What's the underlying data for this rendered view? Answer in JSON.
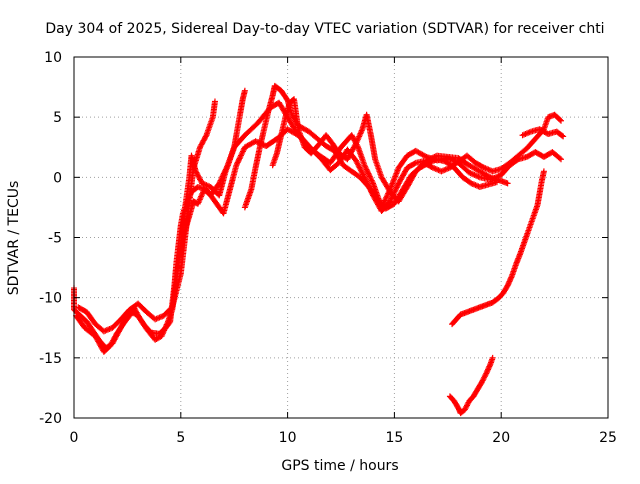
{
  "chart_data": {
    "type": "scatter",
    "title": "Day 304 of 2025, Sidereal Day-to-day VTEC variation (SDTVAR) for receiver chti",
    "xlabel": "GPS time / hours",
    "ylabel": "SDTVAR / TECUs",
    "xlim": [
      0,
      25
    ],
    "ylim": [
      -20,
      10
    ],
    "xticks": [
      0,
      5,
      10,
      15,
      20,
      25
    ],
    "yticks": [
      -20,
      -15,
      -10,
      -5,
      0,
      5,
      10
    ],
    "grid": true,
    "marker": "+",
    "color": "#ff0000",
    "series": [
      {
        "name": "track-1",
        "points": [
          [
            0.0,
            -9.2
          ],
          [
            0.0,
            -11.0
          ],
          [
            0.3,
            -11.5
          ],
          [
            0.6,
            -12.0
          ],
          [
            0.9,
            -12.8
          ],
          [
            1.2,
            -13.6
          ],
          [
            1.5,
            -14.2
          ],
          [
            1.8,
            -13.8
          ],
          [
            2.1,
            -12.8
          ],
          [
            2.4,
            -11.8
          ],
          [
            2.7,
            -11.2
          ],
          [
            3.0,
            -11.5
          ],
          [
            3.3,
            -12.3
          ],
          [
            3.6,
            -12.9
          ],
          [
            4.0,
            -13.0
          ],
          [
            4.3,
            -12.5
          ],
          [
            4.5,
            -12.0
          ],
          [
            4.6,
            -10.5
          ],
          [
            4.7,
            -9.0
          ],
          [
            4.8,
            -7.0
          ],
          [
            4.9,
            -5.5
          ],
          [
            5.0,
            -4.0
          ],
          [
            5.1,
            -3.0
          ],
          [
            5.3,
            -2.0
          ],
          [
            5.5,
            -1.2
          ],
          [
            5.8,
            -0.8
          ],
          [
            6.2,
            -1.0
          ],
          [
            6.6,
            -2.0
          ],
          [
            7.0,
            -3.0
          ],
          [
            7.3,
            -1.0
          ],
          [
            7.6,
            1.0
          ],
          [
            8.0,
            2.5
          ],
          [
            8.5,
            3.0
          ],
          [
            9.0,
            2.6
          ],
          [
            9.5,
            3.2
          ],
          [
            10.0,
            4.0
          ],
          [
            10.5,
            3.5
          ],
          [
            11.0,
            2.5
          ],
          [
            11.5,
            1.8
          ],
          [
            12.0,
            1.2
          ],
          [
            12.5,
            2.5
          ],
          [
            13.0,
            3.5
          ],
          [
            13.3,
            2.5
          ],
          [
            13.6,
            1.0
          ],
          [
            14.0,
            -0.5
          ],
          [
            14.4,
            -2.5
          ],
          [
            14.8,
            -1.0
          ],
          [
            15.2,
            0.8
          ],
          [
            15.6,
            1.8
          ],
          [
            16.0,
            2.2
          ],
          [
            16.5,
            1.7
          ],
          [
            17.0,
            1.4
          ],
          [
            17.5,
            1.6
          ],
          [
            18.0,
            1.2
          ],
          [
            18.5,
            0.4
          ],
          [
            19.0,
            0.0
          ],
          [
            19.5,
            -0.2
          ],
          [
            20.0,
            0.2
          ],
          [
            20.4,
            1.0
          ],
          [
            20.8,
            1.5
          ],
          [
            21.2,
            1.7
          ],
          [
            21.6,
            2.1
          ],
          [
            22.0,
            1.7
          ],
          [
            22.4,
            2.1
          ],
          [
            22.8,
            1.5
          ]
        ]
      },
      {
        "name": "track-2",
        "points": [
          [
            0.1,
            -11.5
          ],
          [
            0.5,
            -12.5
          ],
          [
            1.0,
            -13.2
          ],
          [
            1.4,
            -14.5
          ],
          [
            1.7,
            -14.0
          ],
          [
            2.0,
            -13.0
          ],
          [
            2.3,
            -12.2
          ],
          [
            2.6,
            -11.5
          ],
          [
            2.8,
            -10.8
          ],
          [
            3.1,
            -11.8
          ],
          [
            3.4,
            -12.6
          ],
          [
            3.8,
            -13.5
          ],
          [
            4.1,
            -13.2
          ],
          [
            4.4,
            -12.0
          ],
          [
            4.6,
            -11.0
          ],
          [
            4.8,
            -8.5
          ],
          [
            5.0,
            -5.5
          ],
          [
            5.2,
            -2.5
          ],
          [
            5.4,
            0.0
          ],
          [
            5.5,
            1.8
          ],
          [
            5.7,
            0.5
          ],
          [
            6.0,
            -0.5
          ],
          [
            6.4,
            -0.8
          ],
          [
            6.8,
            -1.5
          ],
          [
            7.1,
            0.5
          ],
          [
            7.5,
            2.5
          ],
          [
            8.0,
            3.5
          ],
          [
            8.6,
            4.5
          ],
          [
            9.2,
            5.8
          ],
          [
            9.6,
            6.2
          ],
          [
            10.0,
            5.0
          ],
          [
            10.4,
            3.8
          ],
          [
            10.8,
            3.0
          ],
          [
            11.2,
            2.2
          ],
          [
            11.6,
            1.5
          ],
          [
            12.0,
            0.6
          ],
          [
            12.4,
            1.2
          ],
          [
            12.8,
            2.3
          ],
          [
            13.2,
            1.4
          ],
          [
            13.6,
            0.0
          ],
          [
            14.0,
            -1.5
          ],
          [
            14.4,
            -2.8
          ],
          [
            14.8,
            -2.0
          ],
          [
            15.2,
            -0.5
          ],
          [
            15.6,
            0.8
          ],
          [
            16.0,
            1.2
          ],
          [
            16.5,
            1.4
          ],
          [
            17.0,
            1.8
          ],
          [
            17.5,
            1.7
          ],
          [
            18.0,
            1.6
          ],
          [
            18.5,
            1.0
          ],
          [
            19.0,
            0.5
          ],
          [
            19.5,
            0.0
          ],
          [
            20.0,
            -0.3
          ],
          [
            20.3,
            -0.5
          ]
        ]
      },
      {
        "name": "track-3",
        "points": [
          [
            0.2,
            -10.8
          ],
          [
            0.6,
            -11.2
          ],
          [
            1.0,
            -12.2
          ],
          [
            1.4,
            -12.8
          ],
          [
            1.8,
            -12.5
          ],
          [
            2.2,
            -11.8
          ],
          [
            2.6,
            -11.0
          ],
          [
            3.0,
            -10.5
          ],
          [
            3.4,
            -11.2
          ],
          [
            3.8,
            -11.8
          ],
          [
            4.2,
            -11.5
          ],
          [
            4.6,
            -10.8
          ],
          [
            5.0,
            -8.0
          ],
          [
            5.3,
            -3.5
          ],
          [
            5.6,
            0.8
          ],
          [
            5.9,
            2.5
          ],
          [
            6.2,
            3.5
          ],
          [
            6.5,
            5.0
          ],
          [
            6.6,
            6.3
          ]
        ]
      },
      {
        "name": "track-4",
        "points": [
          [
            4.9,
            -6.5
          ],
          [
            5.1,
            -5.0
          ],
          [
            5.4,
            -3.2
          ],
          [
            5.6,
            -2.0
          ],
          [
            5.8,
            -2.2
          ],
          [
            6.1,
            -1.0
          ],
          [
            6.4,
            -1.5
          ],
          [
            6.8,
            -0.5
          ],
          [
            7.2,
            1.0
          ],
          [
            7.5,
            2.5
          ],
          [
            7.7,
            4.5
          ],
          [
            7.9,
            6.5
          ],
          [
            8.0,
            7.2
          ]
        ]
      },
      {
        "name": "track-5",
        "points": [
          [
            8.0,
            -2.5
          ],
          [
            8.3,
            -1.0
          ],
          [
            8.5,
            0.8
          ],
          [
            8.7,
            2.5
          ],
          [
            8.9,
            4.0
          ],
          [
            9.1,
            5.5
          ],
          [
            9.3,
            6.8
          ],
          [
            9.4,
            7.6
          ],
          [
            9.7,
            7.2
          ],
          [
            10.0,
            6.4
          ],
          [
            10.2,
            5.2
          ],
          [
            10.5,
            4.3
          ],
          [
            11.0,
            3.8
          ],
          [
            11.4,
            3.2
          ],
          [
            11.8,
            2.6
          ],
          [
            12.2,
            2.2
          ],
          [
            12.6,
            1.0
          ],
          [
            13.0,
            0.5
          ],
          [
            13.4,
            0.0
          ],
          [
            13.8,
            -0.8
          ],
          [
            14.2,
            -1.8
          ],
          [
            14.6,
            -2.6
          ],
          [
            15.0,
            -2.2
          ],
          [
            15.4,
            -1.0
          ],
          [
            15.8,
            0.2
          ],
          [
            16.2,
            0.8
          ],
          [
            16.6,
            1.2
          ],
          [
            17.0,
            1.5
          ],
          [
            17.4,
            1.3
          ],
          [
            17.8,
            0.8
          ],
          [
            18.2,
            0.0
          ],
          [
            18.6,
            -0.5
          ],
          [
            19.0,
            -0.8
          ],
          [
            19.4,
            -0.6
          ],
          [
            19.8,
            -0.4
          ]
        ]
      },
      {
        "name": "track-6",
        "points": [
          [
            9.3,
            1.0
          ],
          [
            9.5,
            2.0
          ],
          [
            9.7,
            3.5
          ],
          [
            9.9,
            5.0
          ],
          [
            10.1,
            6.2
          ],
          [
            10.3,
            6.5
          ],
          [
            10.5,
            4.0
          ],
          [
            10.8,
            2.5
          ],
          [
            11.1,
            2.0
          ],
          [
            11.5,
            2.8
          ],
          [
            11.8,
            3.5
          ],
          [
            12.1,
            2.8
          ],
          [
            12.4,
            2.0
          ],
          [
            12.8,
            1.5
          ],
          [
            13.2,
            2.8
          ],
          [
            13.5,
            4.0
          ],
          [
            13.7,
            5.2
          ],
          [
            13.9,
            3.5
          ],
          [
            14.1,
            1.5
          ],
          [
            14.4,
            0.0
          ],
          [
            14.8,
            -1.2
          ],
          [
            15.2,
            -2.0
          ],
          [
            15.6,
            -0.8
          ],
          [
            16.0,
            0.5
          ],
          [
            16.4,
            1.2
          ],
          [
            16.8,
            0.8
          ],
          [
            17.2,
            0.5
          ],
          [
            17.6,
            0.8
          ],
          [
            18.0,
            1.3
          ],
          [
            18.4,
            1.8
          ],
          [
            18.8,
            1.2
          ],
          [
            19.2,
            0.8
          ],
          [
            19.6,
            0.5
          ],
          [
            20.0,
            0.7
          ],
          [
            20.4,
            1.2
          ],
          [
            20.8,
            1.8
          ],
          [
            21.2,
            2.4
          ],
          [
            21.6,
            3.2
          ],
          [
            22.0,
            4.0
          ],
          [
            22.2,
            5.0
          ],
          [
            22.5,
            5.2
          ],
          [
            22.8,
            4.7
          ]
        ]
      },
      {
        "name": "track-7",
        "points": [
          [
            21.0,
            3.5
          ],
          [
            21.4,
            3.8
          ],
          [
            21.8,
            4.0
          ],
          [
            22.2,
            3.6
          ],
          [
            22.6,
            3.8
          ],
          [
            22.9,
            3.4
          ]
        ]
      },
      {
        "name": "track-8",
        "points": [
          [
            17.7,
            -12.2
          ],
          [
            17.9,
            -11.8
          ],
          [
            18.1,
            -11.4
          ],
          [
            18.4,
            -11.2
          ],
          [
            18.7,
            -11.0
          ],
          [
            19.0,
            -10.8
          ],
          [
            19.3,
            -10.6
          ],
          [
            19.6,
            -10.4
          ],
          [
            19.9,
            -10.0
          ],
          [
            20.1,
            -9.6
          ],
          [
            20.3,
            -9.0
          ],
          [
            20.5,
            -8.2
          ],
          [
            20.7,
            -7.2
          ],
          [
            20.9,
            -6.3
          ],
          [
            21.1,
            -5.3
          ],
          [
            21.3,
            -4.3
          ],
          [
            21.5,
            -3.3
          ],
          [
            21.7,
            -2.3
          ],
          [
            21.8,
            -1.3
          ],
          [
            21.9,
            -0.3
          ],
          [
            22.0,
            0.5
          ]
        ]
      },
      {
        "name": "track-9",
        "points": [
          [
            17.6,
            -18.2
          ],
          [
            17.8,
            -18.6
          ],
          [
            18.0,
            -19.2
          ],
          [
            18.1,
            -19.6
          ],
          [
            18.3,
            -19.3
          ],
          [
            18.5,
            -18.6
          ],
          [
            18.7,
            -18.2
          ],
          [
            18.9,
            -17.6
          ],
          [
            19.1,
            -17.0
          ],
          [
            19.3,
            -16.3
          ],
          [
            19.5,
            -15.5
          ],
          [
            19.6,
            -15.0
          ]
        ]
      }
    ]
  }
}
